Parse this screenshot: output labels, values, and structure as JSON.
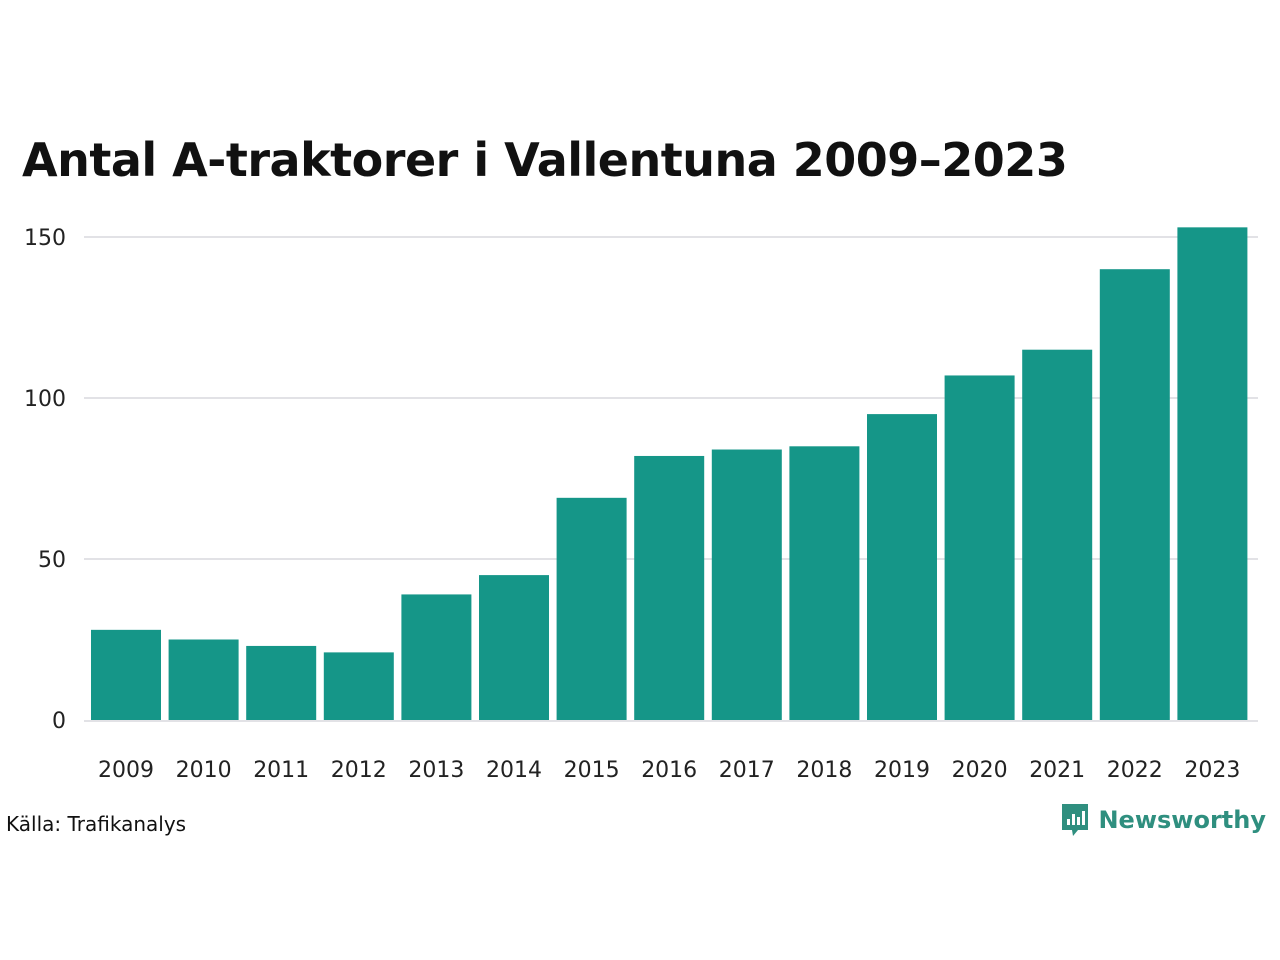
{
  "chart_data": {
    "type": "bar",
    "title": "Antal A-traktorer i Vallentuna 2009–2023",
    "xlabel": "",
    "ylabel": "",
    "categories": [
      "2009",
      "2010",
      "2011",
      "2012",
      "2013",
      "2014",
      "2015",
      "2016",
      "2017",
      "2018",
      "2019",
      "2020",
      "2021",
      "2022",
      "2023"
    ],
    "values": [
      28,
      25,
      23,
      21,
      39,
      45,
      69,
      82,
      84,
      85,
      95,
      107,
      115,
      140,
      153
    ],
    "ylim": [
      0,
      150
    ],
    "yticks": [
      "0",
      "50",
      "100",
      "150"
    ],
    "grid": true,
    "bar_color": "#159688",
    "grid_color": "#e2e2e6"
  },
  "source": "Källa: Trafikanalys",
  "brand": {
    "name": "Newsworthy",
    "icon": "newsworthy-logo-icon",
    "color": "#2f8f7f"
  }
}
